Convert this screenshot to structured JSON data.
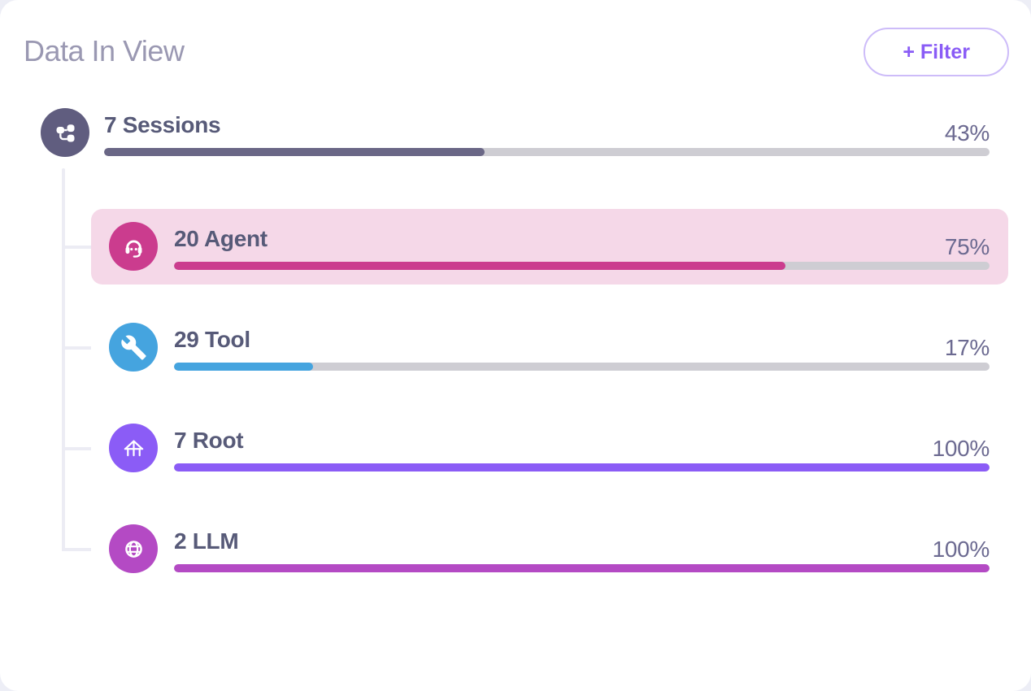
{
  "panel": {
    "title": "Data In View",
    "filter_button": "+ Filter"
  },
  "colors": {
    "page_bg": "#edeef6",
    "card_bg": "#ffffff",
    "title_text": "#9a98b2",
    "label_text": "#575a78",
    "percent_text": "#6c6a91",
    "track": "#cecdd3",
    "connector": "#ececf4",
    "filter_border": "#cdbcf9",
    "filter_text": "#8a5cf6",
    "highlight_bg": "#f5d8e8"
  },
  "rows": [
    {
      "id": "sessions",
      "label": "7 Sessions",
      "percent": "43%",
      "value": 43,
      "icon": "workflow-icon",
      "icon_bg": "#605d7f",
      "bar_color": "#6a6786",
      "highlighted": false
    },
    {
      "id": "agent",
      "label": "20 Agent",
      "percent": "75%",
      "value": 75,
      "icon": "headset-icon",
      "icon_bg": "#cb3c8e",
      "bar_color": "#cb3c8e",
      "highlighted": true
    },
    {
      "id": "tool",
      "label": "29 Tool",
      "percent": "17%",
      "value": 17,
      "icon": "wrench-icon",
      "icon_bg": "#45a4df",
      "bar_color": "#45a4df",
      "highlighted": false
    },
    {
      "id": "root",
      "label": "7 Root",
      "percent": "100%",
      "value": 100,
      "icon": "house-icon",
      "icon_bg": "#8b5cf6",
      "bar_color": "#8b5cf6",
      "highlighted": false
    },
    {
      "id": "llm",
      "label": "2 LLM",
      "percent": "100%",
      "value": 100,
      "icon": "globe-icon",
      "icon_bg": "#b44ac4",
      "bar_color": "#b44ac4",
      "highlighted": false
    }
  ]
}
